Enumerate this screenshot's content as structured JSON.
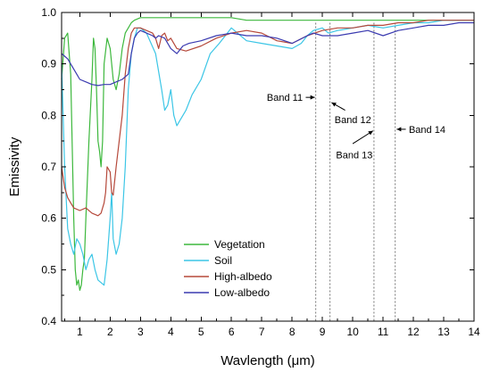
{
  "chart_data": {
    "type": "line",
    "title": "",
    "xlabel": "Wavlength (μm)",
    "ylabel": "Emissivity",
    "xlim": [
      0.4,
      14.0
    ],
    "ylim": [
      0.4,
      1.0
    ],
    "x_ticks": [
      1,
      2,
      3,
      4,
      5,
      6,
      7,
      8,
      9,
      10,
      11,
      12,
      13,
      14
    ],
    "x_tick_labels": [
      "1",
      "2",
      "3",
      "4",
      "5",
      "6",
      "7",
      "8",
      "9",
      "10",
      "11",
      "12",
      "13",
      "14"
    ],
    "y_ticks": [
      0.4,
      0.5,
      0.6,
      0.7,
      0.8,
      0.9,
      1.0
    ],
    "y_tick_labels": [
      "0.4",
      "0.5",
      "0.6",
      "0.7",
      "0.8",
      "0.9",
      "1.0"
    ],
    "grid": false,
    "legend_position": "bottom-center",
    "series": [
      {
        "name": "Vegetation",
        "color": "#3db83d",
        "x": [
          0.4,
          0.5,
          0.6,
          0.7,
          0.8,
          0.85,
          0.9,
          0.95,
          1.0,
          1.05,
          1.1,
          1.15,
          1.2,
          1.3,
          1.4,
          1.45,
          1.5,
          1.55,
          1.6,
          1.65,
          1.7,
          1.75,
          1.8,
          1.9,
          2.0,
          2.05,
          2.1,
          2.2,
          2.3,
          2.4,
          2.5,
          2.6,
          2.7,
          2.8,
          3.0,
          3.5,
          4.0,
          5.0,
          6.0,
          6.5,
          7.0,
          8.0,
          9.0,
          10.0,
          11.0,
          12.0,
          13.0,
          14.0
        ],
        "y": [
          0.87,
          0.95,
          0.96,
          0.88,
          0.6,
          0.5,
          0.47,
          0.48,
          0.46,
          0.47,
          0.5,
          0.52,
          0.6,
          0.75,
          0.87,
          0.95,
          0.93,
          0.85,
          0.75,
          0.73,
          0.7,
          0.75,
          0.9,
          0.95,
          0.93,
          0.9,
          0.87,
          0.85,
          0.88,
          0.93,
          0.96,
          0.97,
          0.98,
          0.985,
          0.99,
          0.99,
          0.99,
          0.99,
          0.99,
          0.985,
          0.985,
          0.985,
          0.985,
          0.985,
          0.985,
          0.985,
          0.985,
          0.985
        ]
      },
      {
        "name": "Soil",
        "color": "#3cc6e6",
        "x": [
          0.4,
          0.5,
          0.6,
          0.7,
          0.8,
          0.9,
          1.0,
          1.1,
          1.2,
          1.3,
          1.4,
          1.5,
          1.6,
          1.7,
          1.8,
          1.9,
          2.0,
          2.05,
          2.1,
          2.2,
          2.3,
          2.4,
          2.5,
          2.6,
          2.7,
          2.8,
          2.9,
          3.0,
          3.2,
          3.5,
          3.7,
          3.8,
          3.9,
          4.0,
          4.1,
          4.2,
          4.3,
          4.5,
          4.7,
          5.0,
          5.3,
          5.6,
          5.8,
          6.0,
          6.2,
          6.5,
          7.0,
          7.5,
          8.0,
          8.3,
          8.5,
          8.7,
          9.0,
          9.2,
          9.5,
          10.0,
          10.5,
          11.0,
          11.5,
          12.0,
          12.5,
          13.0,
          13.5,
          14.0
        ],
        "y": [
          0.9,
          0.7,
          0.58,
          0.55,
          0.53,
          0.56,
          0.55,
          0.53,
          0.5,
          0.52,
          0.53,
          0.5,
          0.48,
          0.475,
          0.47,
          0.52,
          0.6,
          0.65,
          0.56,
          0.53,
          0.55,
          0.6,
          0.7,
          0.85,
          0.92,
          0.95,
          0.97,
          0.97,
          0.96,
          0.92,
          0.85,
          0.81,
          0.82,
          0.85,
          0.8,
          0.78,
          0.79,
          0.81,
          0.84,
          0.87,
          0.92,
          0.94,
          0.955,
          0.97,
          0.96,
          0.945,
          0.94,
          0.935,
          0.93,
          0.94,
          0.955,
          0.965,
          0.97,
          0.96,
          0.965,
          0.97,
          0.975,
          0.97,
          0.975,
          0.98,
          0.98,
          0.985,
          0.985,
          0.985
        ]
      },
      {
        "name": "High-albedo",
        "color": "#b5483a",
        "x": [
          0.4,
          0.5,
          0.6,
          0.7,
          0.8,
          1.0,
          1.2,
          1.4,
          1.6,
          1.7,
          1.8,
          1.85,
          1.9,
          2.0,
          2.05,
          2.1,
          2.2,
          2.3,
          2.4,
          2.5,
          2.6,
          2.7,
          2.8,
          3.0,
          3.2,
          3.4,
          3.5,
          3.6,
          3.7,
          3.8,
          3.9,
          4.0,
          4.2,
          4.5,
          5.0,
          5.5,
          6.0,
          6.5,
          7.0,
          7.5,
          8.0,
          8.5,
          9.0,
          9.5,
          10.0,
          10.5,
          11.0,
          11.5,
          12.0,
          12.5,
          13.0,
          13.5,
          14.0
        ],
        "y": [
          0.7,
          0.66,
          0.64,
          0.63,
          0.62,
          0.615,
          0.62,
          0.61,
          0.605,
          0.61,
          0.63,
          0.65,
          0.7,
          0.69,
          0.65,
          0.645,
          0.7,
          0.75,
          0.8,
          0.88,
          0.93,
          0.96,
          0.97,
          0.97,
          0.965,
          0.96,
          0.95,
          0.93,
          0.955,
          0.96,
          0.945,
          0.95,
          0.93,
          0.925,
          0.935,
          0.95,
          0.96,
          0.965,
          0.96,
          0.945,
          0.94,
          0.955,
          0.965,
          0.97,
          0.97,
          0.975,
          0.975,
          0.98,
          0.98,
          0.985,
          0.985,
          0.985,
          0.985
        ]
      },
      {
        "name": "Low-albedo",
        "color": "#3a3ab0",
        "x": [
          0.4,
          0.5,
          0.6,
          0.7,
          0.8,
          0.9,
          1.0,
          1.2,
          1.4,
          1.6,
          1.8,
          2.0,
          2.2,
          2.4,
          2.5,
          2.6,
          2.7,
          2.8,
          2.9,
          3.0,
          3.2,
          3.4,
          3.5,
          3.6,
          3.8,
          4.0,
          4.2,
          4.4,
          4.6,
          5.0,
          5.5,
          6.0,
          6.5,
          7.0,
          7.5,
          8.0,
          8.5,
          8.7,
          9.0,
          9.5,
          10.0,
          10.5,
          11.0,
          11.5,
          12.0,
          12.5,
          13.0,
          13.5,
          14.0
        ],
        "y": [
          0.92,
          0.915,
          0.91,
          0.9,
          0.89,
          0.88,
          0.87,
          0.865,
          0.86,
          0.858,
          0.86,
          0.86,
          0.865,
          0.87,
          0.875,
          0.88,
          0.92,
          0.95,
          0.96,
          0.965,
          0.96,
          0.955,
          0.95,
          0.955,
          0.95,
          0.93,
          0.92,
          0.935,
          0.94,
          0.945,
          0.955,
          0.96,
          0.955,
          0.955,
          0.95,
          0.94,
          0.955,
          0.96,
          0.955,
          0.955,
          0.96,
          0.965,
          0.955,
          0.965,
          0.97,
          0.975,
          0.975,
          0.98,
          0.98
        ]
      }
    ],
    "annotations": [
      {
        "text": "Band 11",
        "band_x": 8.78,
        "arrow_from": [
          8.45,
          0.835
        ],
        "arrow_to": [
          8.75,
          0.835
        ],
        "label_anchor": "end",
        "label_at": [
          8.35,
          0.835
        ]
      },
      {
        "text": "Band 12",
        "band_x": 9.25,
        "arrow_from": [
          9.75,
          0.81
        ],
        "arrow_to": [
          9.3,
          0.825
        ],
        "label_anchor": "start",
        "label_at": [
          9.4,
          0.792
        ]
      },
      {
        "text": "Band 13",
        "band_x": 10.7,
        "arrow_from": [
          10.0,
          0.745
        ],
        "arrow_to": [
          10.67,
          0.77
        ],
        "label_anchor": "start",
        "label_at": [
          9.45,
          0.723
        ]
      },
      {
        "text": "Band 14",
        "band_x": 11.4,
        "arrow_from": [
          11.75,
          0.773
        ],
        "arrow_to": [
          11.45,
          0.773
        ],
        "label_anchor": "start",
        "label_at": [
          11.85,
          0.773
        ]
      }
    ],
    "band_lines": [
      8.78,
      9.25,
      10.7,
      11.4
    ]
  }
}
